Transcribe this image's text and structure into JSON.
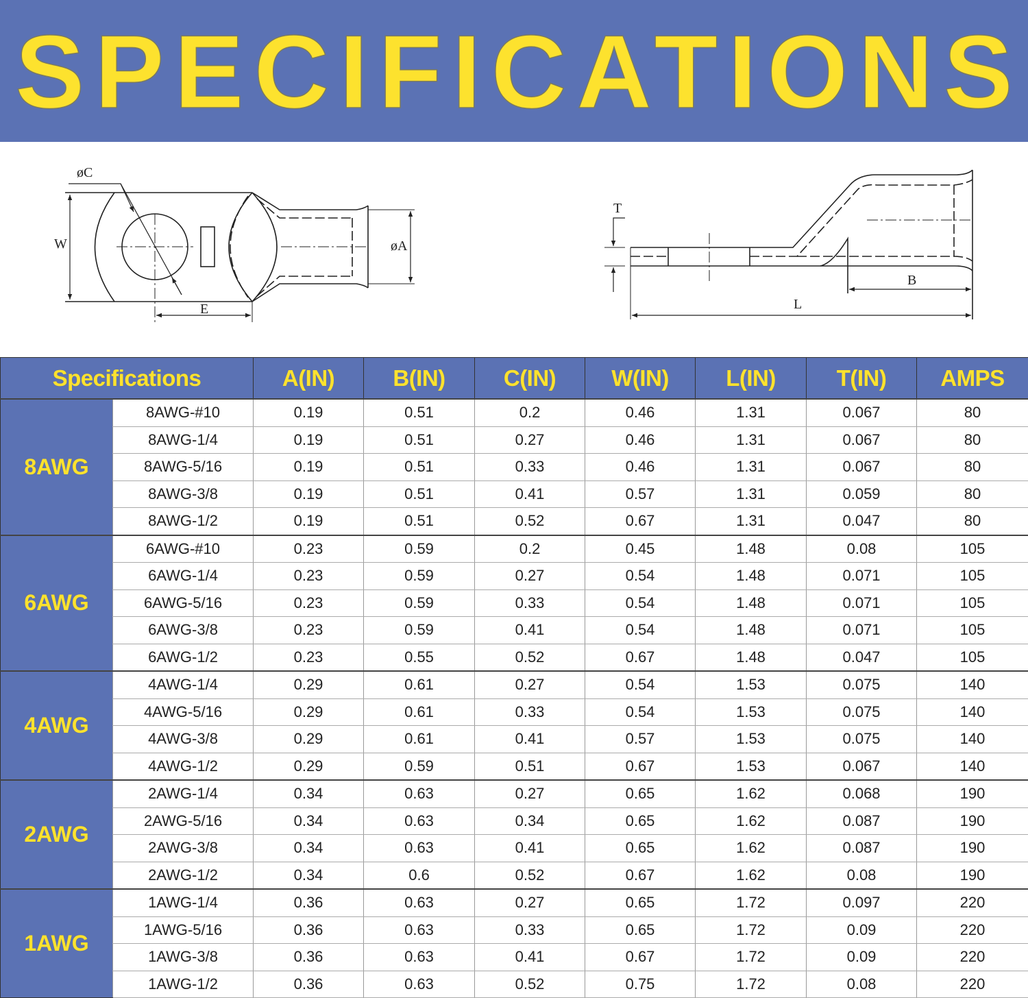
{
  "title": "SPECIFICATIONS",
  "colors": {
    "banner": "#5b72b4",
    "title": "#fde22e",
    "header_bg": "#5b72b4",
    "header_text": "#fde22e"
  },
  "drawing": {
    "top_view_labels": {
      "c": "øC",
      "w": "W",
      "a": "øA",
      "e": "E"
    },
    "side_view_labels": {
      "t": "T",
      "b": "B",
      "l": "L"
    }
  },
  "table": {
    "headers": [
      "Specifications",
      "A(IN)",
      "B(IN)",
      "C(IN)",
      "W(IN)",
      "L(IN)",
      "T(IN)",
      "AMPS"
    ],
    "groups": [
      {
        "label": "8AWG",
        "rows": [
          [
            "8AWG-#10",
            "0.19",
            "0.51",
            "0.2",
            "0.46",
            "1.31",
            "0.067",
            "80"
          ],
          [
            "8AWG-1/4",
            "0.19",
            "0.51",
            "0.27",
            "0.46",
            "1.31",
            "0.067",
            "80"
          ],
          [
            "8AWG-5/16",
            "0.19",
            "0.51",
            "0.33",
            "0.46",
            "1.31",
            "0.067",
            "80"
          ],
          [
            "8AWG-3/8",
            "0.19",
            "0.51",
            "0.41",
            "0.57",
            "1.31",
            "0.059",
            "80"
          ],
          [
            "8AWG-1/2",
            "0.19",
            "0.51",
            "0.52",
            "0.67",
            "1.31",
            "0.047",
            "80"
          ]
        ]
      },
      {
        "label": "6AWG",
        "rows": [
          [
            "6AWG-#10",
            "0.23",
            "0.59",
            "0.2",
            "0.45",
            "1.48",
            "0.08",
            "105"
          ],
          [
            "6AWG-1/4",
            "0.23",
            "0.59",
            "0.27",
            "0.54",
            "1.48",
            "0.071",
            "105"
          ],
          [
            "6AWG-5/16",
            "0.23",
            "0.59",
            "0.33",
            "0.54",
            "1.48",
            "0.071",
            "105"
          ],
          [
            "6AWG-3/8",
            "0.23",
            "0.59",
            "0.41",
            "0.54",
            "1.48",
            "0.071",
            "105"
          ],
          [
            "6AWG-1/2",
            "0.23",
            "0.55",
            "0.52",
            "0.67",
            "1.48",
            "0.047",
            "105"
          ]
        ]
      },
      {
        "label": "4AWG",
        "rows": [
          [
            "4AWG-1/4",
            "0.29",
            "0.61",
            "0.27",
            "0.54",
            "1.53",
            "0.075",
            "140"
          ],
          [
            "4AWG-5/16",
            "0.29",
            "0.61",
            "0.33",
            "0.54",
            "1.53",
            "0.075",
            "140"
          ],
          [
            "4AWG-3/8",
            "0.29",
            "0.61",
            "0.41",
            "0.57",
            "1.53",
            "0.075",
            "140"
          ],
          [
            "4AWG-1/2",
            "0.29",
            "0.59",
            "0.51",
            "0.67",
            "1.53",
            "0.067",
            "140"
          ]
        ]
      },
      {
        "label": "2AWG",
        "rows": [
          [
            "2AWG-1/4",
            "0.34",
            "0.63",
            "0.27",
            "0.65",
            "1.62",
            "0.068",
            "190"
          ],
          [
            "2AWG-5/16",
            "0.34",
            "0.63",
            "0.34",
            "0.65",
            "1.62",
            "0.087",
            "190"
          ],
          [
            "2AWG-3/8",
            "0.34",
            "0.63",
            "0.41",
            "0.65",
            "1.62",
            "0.087",
            "190"
          ],
          [
            "2AWG-1/2",
            "0.34",
            "0.6",
            "0.52",
            "0.67",
            "1.62",
            "0.08",
            "190"
          ]
        ]
      },
      {
        "label": "1AWG",
        "rows": [
          [
            "1AWG-1/4",
            "0.36",
            "0.63",
            "0.27",
            "0.65",
            "1.72",
            "0.097",
            "220"
          ],
          [
            "1AWG-5/16",
            "0.36",
            "0.63",
            "0.33",
            "0.65",
            "1.72",
            "0.09",
            "220"
          ],
          [
            "1AWG-3/8",
            "0.36",
            "0.63",
            "0.41",
            "0.67",
            "1.72",
            "0.09",
            "220"
          ],
          [
            "1AWG-1/2",
            "0.36",
            "0.63",
            "0.52",
            "0.75",
            "1.72",
            "0.08",
            "220"
          ]
        ]
      }
    ]
  }
}
